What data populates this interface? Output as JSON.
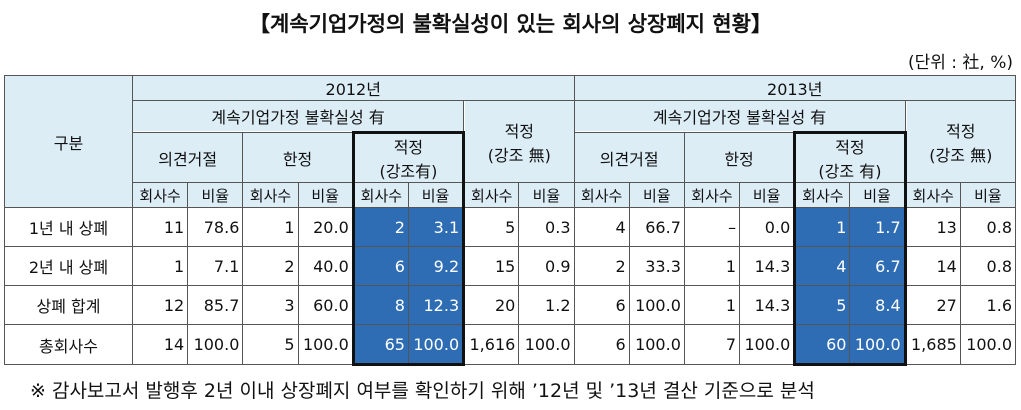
{
  "header": {
    "title": "【계속기업가정의 불확실성이 있는 회사의 상장폐지 현황】",
    "unit": "(단위 : 社, %)"
  },
  "table": {
    "corner": "구분",
    "years": [
      {
        "label": "2012년",
        "group": "계속기업가정 불확실성 有",
        "opinions": [
          [
            "의견거절"
          ],
          [
            "한정"
          ],
          [
            "적정",
            "(강조有)"
          ]
        ],
        "other": [
          "적정",
          "(강조 無)"
        ],
        "subheads": [
          "회사수",
          "비율",
          "회사수",
          "비율",
          "회사수",
          "비율",
          "회사수",
          "비율"
        ]
      },
      {
        "label": "2013년",
        "group": "계속기업가정 불확실성 有",
        "opinions": [
          [
            "의견거절"
          ],
          [
            "한정"
          ],
          [
            "적정",
            "(강조 有)"
          ]
        ],
        "other": [
          "적정",
          "(강조 無)"
        ],
        "subheads": [
          "회사수",
          "비율",
          "회사수",
          "비율",
          "회사수",
          "비율",
          "회사수",
          "비율"
        ]
      }
    ],
    "rows": [
      {
        "label": "1년 내 상폐",
        "cells": [
          "11",
          "78.6",
          "1",
          "20.0",
          "2",
          "3.1",
          "5",
          "0.3",
          "4",
          "66.7",
          "–",
          "0.0",
          "1",
          "1.7",
          "13",
          "0.8"
        ]
      },
      {
        "label": "2년 내 상폐",
        "cells": [
          "1",
          "7.1",
          "2",
          "40.0",
          "6",
          "9.2",
          "15",
          "0.9",
          "2",
          "33.3",
          "1",
          "14.3",
          "4",
          "6.7",
          "14",
          "0.8"
        ]
      },
      {
        "label": "상폐 합계",
        "cells": [
          "12",
          "85.7",
          "3",
          "60.0",
          "8",
          "12.3",
          "20",
          "1.2",
          "6",
          "100.0",
          "1",
          "14.3",
          "5",
          "8.4",
          "27",
          "1.6"
        ]
      },
      {
        "label": "총회사수",
        "cells": [
          "14",
          "100.0",
          "5",
          "100.0",
          "65",
          "100.0",
          "1,616",
          "100.0",
          "6",
          "100.0",
          "7",
          "100.0",
          "60",
          "100.0",
          "1,685",
          "100.0"
        ]
      }
    ]
  },
  "footnote": "※ 감사보고서 발행후 2년 이내 상장폐지 여부를 확인하기 위해 ’12년 및 ’13년 결산 기준으로 분석"
}
